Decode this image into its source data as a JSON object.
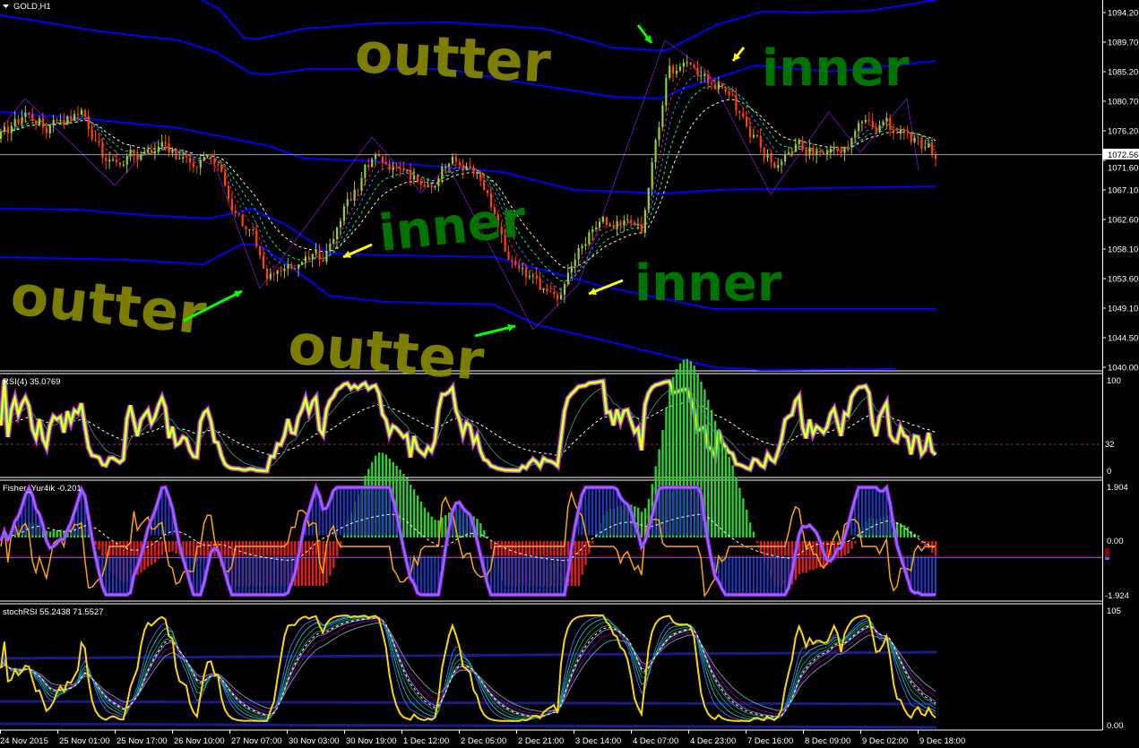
{
  "window": {
    "symbol_title": "GOLD,H1",
    "menu_icon": "triangle-down-icon"
  },
  "price_axis": {
    "labels": [
      "1094.20",
      "1089.70",
      "1085.20",
      "1080.70",
      "1076.20",
      "1071.60",
      "1067.10",
      "1062.60",
      "1058.10",
      "1053.60",
      "1049.10",
      "1044.50",
      "1040.00"
    ],
    "current_price": "1072.56"
  },
  "time_axis": {
    "labels": [
      "24 Nov 2015",
      "25 Nov 01:00",
      "25 Nov 17:00",
      "26 Nov 10:00",
      "27 Nov 07:00",
      "30 Nov 03:00",
      "30 Nov 19:00",
      "1 Dec 12:00",
      "2 Dec 05:00",
      "2 Dec 21:00",
      "3 Dec 14:00",
      "4 Dec 07:00",
      "4 Dec 23:00",
      "7 Dec 16:00",
      "8 Dec 09:00",
      "9 Dec 02:00",
      "9 Dec 18:00"
    ]
  },
  "indicators": {
    "rsi": {
      "label": "RSI(4) 35.0769",
      "levels": [
        "100",
        "32",
        "0"
      ]
    },
    "fisher": {
      "label": "Fisher_Yur4ik -0.201",
      "levels": [
        "1.904",
        "0.00",
        "-1.924"
      ],
      "marker": "0"
    },
    "stochrsi": {
      "label": "stochRSI 55.2438 71.5527",
      "levels": [
        "105",
        "0.00"
      ]
    }
  },
  "annotations": {
    "outer_labels": [
      "outter",
      "outter",
      "outter"
    ],
    "inner_labels": [
      "inner",
      "inner",
      "inner"
    ]
  },
  "colors": {
    "background": "#000000",
    "bull_candle": "#9acd32",
    "bear_candle": "#ff4500",
    "bands": "#0000ff",
    "outer_annotation": "#8b8b00",
    "inner_annotation": "#008000",
    "rsi_main": "#ffff00",
    "zigzag": "#6a0dad"
  },
  "price_path": [
    1075,
    1078,
    1077,
    1079,
    1071,
    1073,
    1073,
    1072,
    1071,
    1063,
    1055,
    1055,
    1056,
    1065,
    1073,
    1069,
    1068,
    1072,
    1069,
    1056,
    1052,
    1051,
    1060,
    1062,
    1061,
    1086,
    1085,
    1083,
    1076,
    1071,
    1073,
    1073,
    1076,
    1077,
    1075,
    1072.5
  ]
}
